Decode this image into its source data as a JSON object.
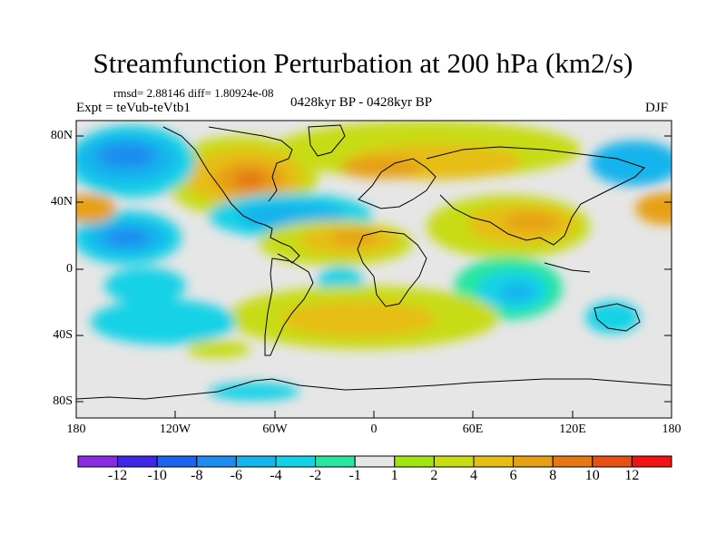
{
  "title": "Streamfunction Perturbation at 200 hPa (km2/s)",
  "stats_line": "rmsd= 2.88146 diff= 1.80924e-08",
  "experiment": "Expt = teVub-teVtb1",
  "period": "0428kyr BP - 0428kyr BP",
  "season": "DJF",
  "y_axis_labels": [
    "80N",
    "40N",
    "0",
    "40S",
    "80S"
  ],
  "x_axis_labels": [
    "180",
    "120W",
    "60W",
    "0",
    "60E",
    "120E",
    "180"
  ],
  "colorbar": {
    "labels": [
      "-12",
      "-10",
      "-8",
      "-6",
      "-4",
      "-2",
      "-1",
      "1",
      "2",
      "4",
      "6",
      "8",
      "10",
      "12"
    ],
    "colors": [
      "#8a2be2",
      "#3c28e6",
      "#1e64f0",
      "#1e8cf0",
      "#14b4ec",
      "#14d2e6",
      "#28e6a0",
      "#e6e6e6",
      "#a0e614",
      "#c8dc14",
      "#e6be14",
      "#e6a014",
      "#e67814",
      "#e65014",
      "#f01414"
    ]
  },
  "colors": {
    "background": "#ffffff",
    "ocean_neutral": "#e6e6e6",
    "coastline": "#000000"
  }
}
